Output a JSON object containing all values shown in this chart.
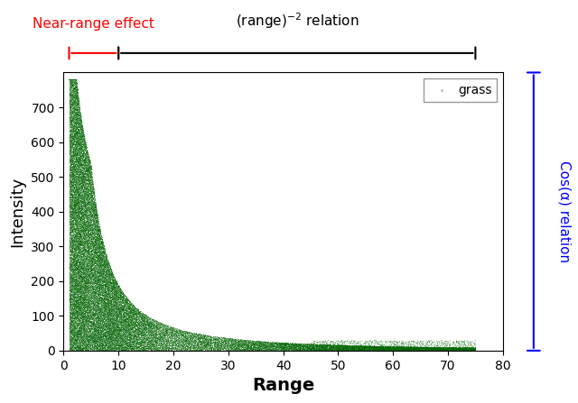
{
  "title": "",
  "xlabel": "Range",
  "ylabel": "Intensity",
  "xlim": [
    0,
    80
  ],
  "ylim": [
    0,
    800
  ],
  "xticks": [
    0,
    10,
    20,
    30,
    40,
    50,
    60,
    70,
    80
  ],
  "yticks": [
    0,
    100,
    200,
    300,
    400,
    500,
    600,
    700
  ],
  "dot_color": "#006400",
  "dot_size": 0.3,
  "legend_label": "grass",
  "near_range_label": "Near-range effect",
  "near_range_color": "red",
  "range_squared_label": "(range)$^{-2}$ relation",
  "cos_alpha_label": "Cos(α) relation",
  "cos_alpha_color": "blue",
  "near_range_x_start": 1.0,
  "near_range_x_end": 10.0,
  "range_squared_x_start": 10.0,
  "range_squared_x_end": 75.0,
  "seed": 42,
  "n_points": 80000,
  "background_color": "white"
}
